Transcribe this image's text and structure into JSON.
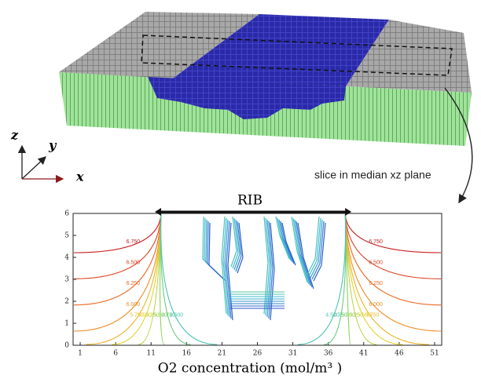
{
  "figure": {
    "axis_glyph": {
      "z": "z",
      "y": "y",
      "x": "x"
    },
    "slice_label": "slice in median xz plane"
  },
  "chart_data": {
    "type": "contour",
    "annotation": "RIB",
    "xlabel": "O2 concentration (mol/m³ )",
    "xlim": [
      0,
      52
    ],
    "ylim": [
      0,
      6
    ],
    "xticks": [
      1,
      6,
      11,
      16,
      21,
      26,
      31,
      36,
      41,
      46,
      51
    ],
    "yticks": [
      0,
      1,
      2,
      3,
      4,
      5,
      6
    ],
    "levels": [
      {
        "value": 6.75,
        "label": "6.750"
      },
      {
        "value": 6.5,
        "label": "6.500"
      },
      {
        "value": 6.25,
        "label": "6.250"
      },
      {
        "value": 6.0,
        "label": "6.000"
      },
      {
        "value": 5.75,
        "label": "5.750"
      },
      {
        "value": 5.5,
        "label": "5.500"
      },
      {
        "value": 5.25,
        "label": "5.250"
      },
      {
        "value": 5.0,
        "label": "5.000"
      },
      {
        "value": 4.75,
        "label": "4.750"
      },
      {
        "value": 4.5,
        "label": "4.500"
      }
    ]
  }
}
